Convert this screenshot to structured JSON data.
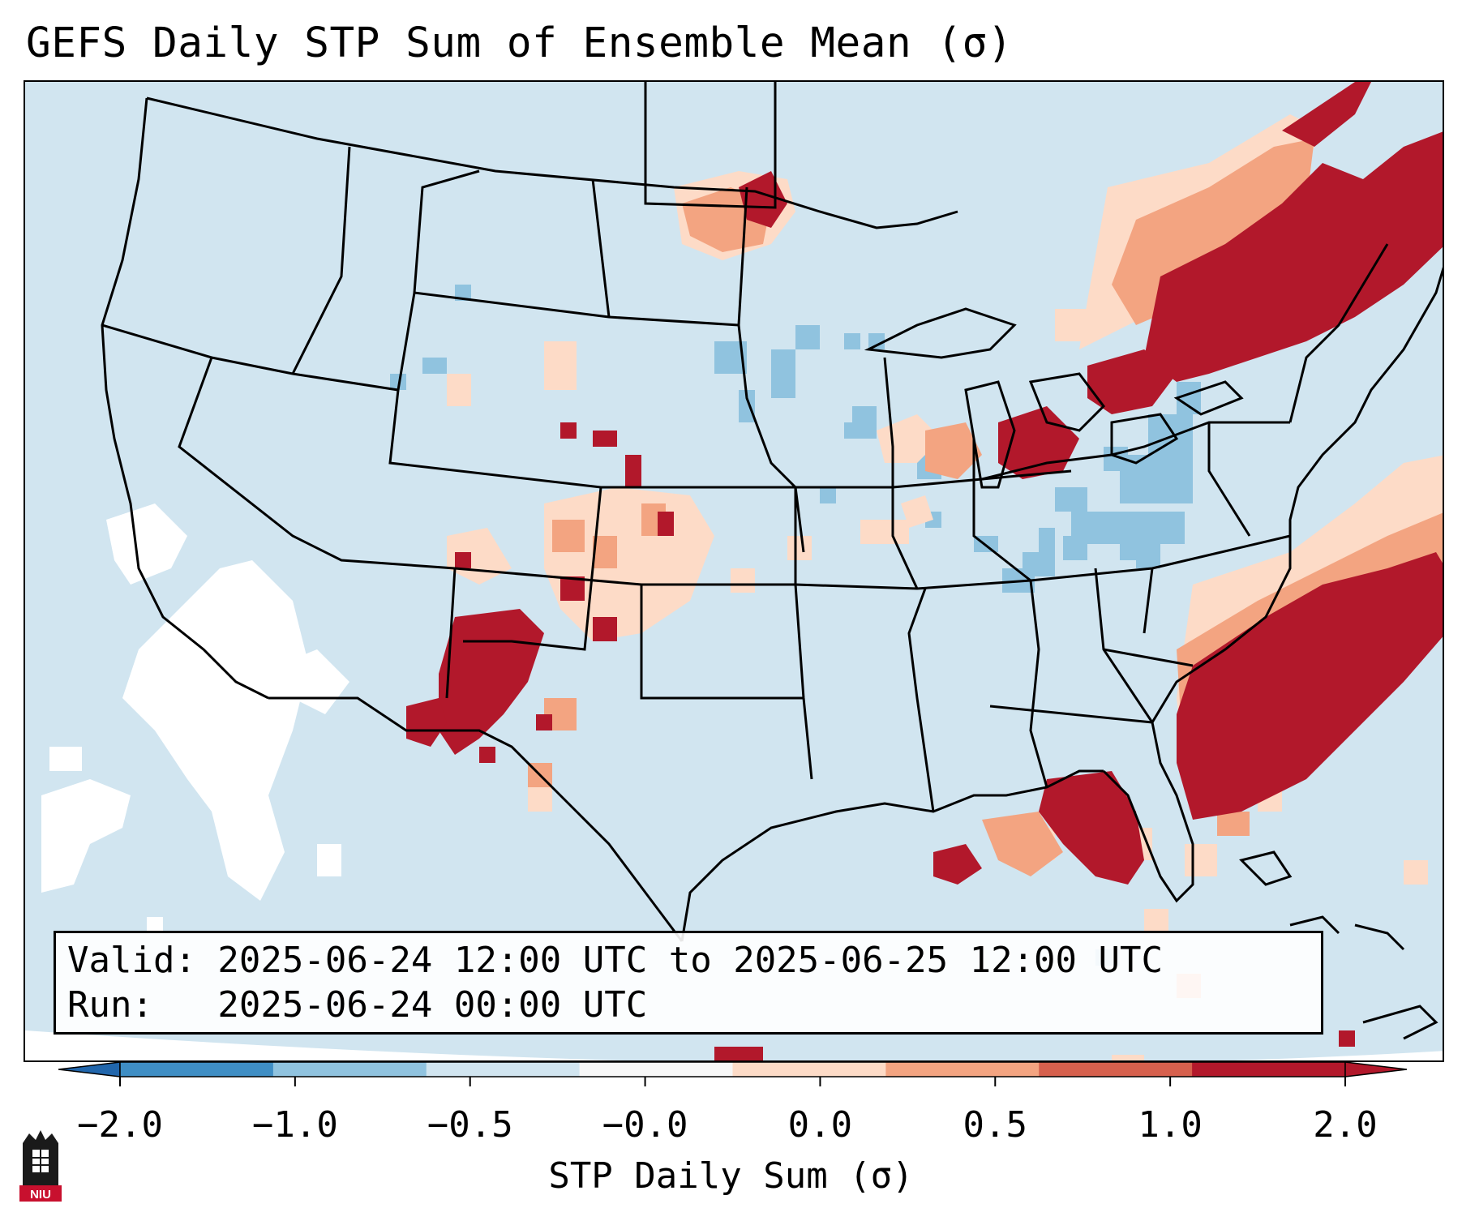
{
  "title": "GEFS Daily STP Sum of Ensemble Mean (σ)",
  "info": {
    "valid": "Valid: 2025-06-24 12:00 UTC to 2025-06-25 12:00 UTC",
    "run": "Run:   2025-06-24 00:00 UTC"
  },
  "colorbar": {
    "label": "STP Daily Sum (σ)",
    "ticks": [
      "−2.0",
      "−1.0",
      "−0.5",
      "−0.0",
      "0.0",
      "0.5",
      "1.0",
      "2.0"
    ],
    "colors": [
      "#3f8ec4",
      "#90c3df",
      "#d1e5f0",
      "#f7f7f7",
      "#fddbc7",
      "#f3a481",
      "#d6604d",
      "#b2182b"
    ],
    "extend_low_color": "#2166ac",
    "extend_high_color": "#b2182b"
  },
  "map": {
    "projection_region": "CONUS",
    "background_color": "#d1e5f0",
    "notable_anomalies": [
      {
        "region": "Northeast US / New England",
        "category": "> 1.0"
      },
      {
        "region": "Atlantic offshore Carolinas",
        "category": "> 1.0"
      },
      {
        "region": "Florida",
        "category": "> 1.0"
      },
      {
        "region": "New Mexico",
        "category": "> 1.0"
      },
      {
        "region": "Lower Michigan",
        "category": "> 1.0"
      },
      {
        "region": "Manitoba",
        "category": "0.5 to 1.0"
      },
      {
        "region": "Pennsylvania",
        "category": "-1.0 to -0.5"
      }
    ]
  },
  "logo": {
    "text": "NIU"
  }
}
